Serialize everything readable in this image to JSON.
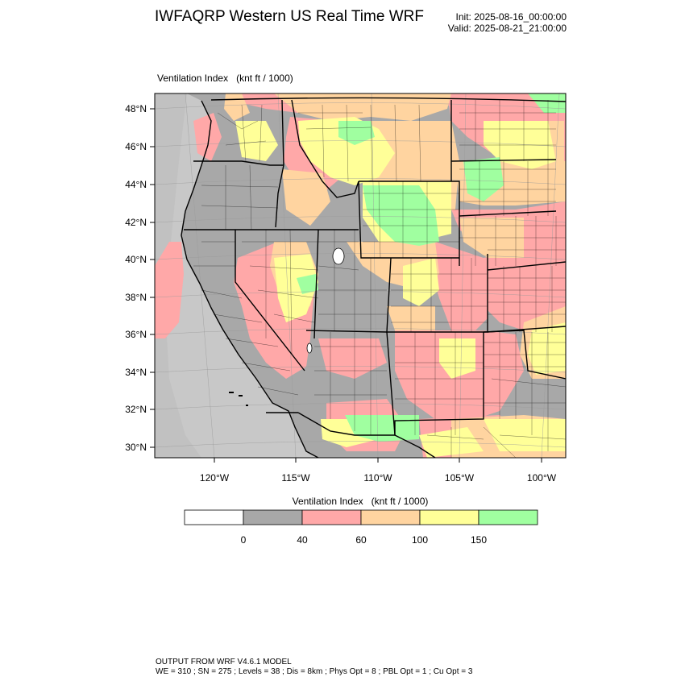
{
  "header": {
    "title": "IWFAQRP Western US Real Time WRF",
    "init": "Init: 2025-08-16_00:00:00",
    "valid": "Valid: 2025-08-21_21:00:00",
    "subtitle": "Ventilation Index   (knt ft / 1000)"
  },
  "axes": {
    "lat_labels": [
      "48°N",
      "46°N",
      "44°N",
      "42°N",
      "40°N",
      "38°N",
      "36°N",
      "34°N",
      "32°N",
      "30°N"
    ],
    "lon_labels": [
      "120°W",
      "115°W",
      "110°W",
      "105°W",
      "100°W"
    ]
  },
  "colorbar": {
    "title": "Ventilation Index   (knt ft / 1000)",
    "tick_labels": [
      "0",
      "40",
      "60",
      "100",
      "150"
    ],
    "colors": [
      "#ffffff",
      "#a8a8a8",
      "#ffa8a8",
      "#ffd4a0",
      "#ffff98",
      "#a0ffa0"
    ]
  },
  "palette": {
    "ocean": "#c8c8c8",
    "grey": "#a8a8a8",
    "pink": "#ffa8a8",
    "orange": "#ffd4a0",
    "yellow": "#ffff98",
    "green": "#a0ffa0"
  },
  "footer": {
    "line1": "OUTPUT FROM WRF V4.6.1 MODEL",
    "line2": "WE = 310 ; SN = 275 ; Levels = 38 ; Dis = 8km ; Phys Opt = 8 ; PBL Opt = 1 ; Cu Opt = 3"
  }
}
